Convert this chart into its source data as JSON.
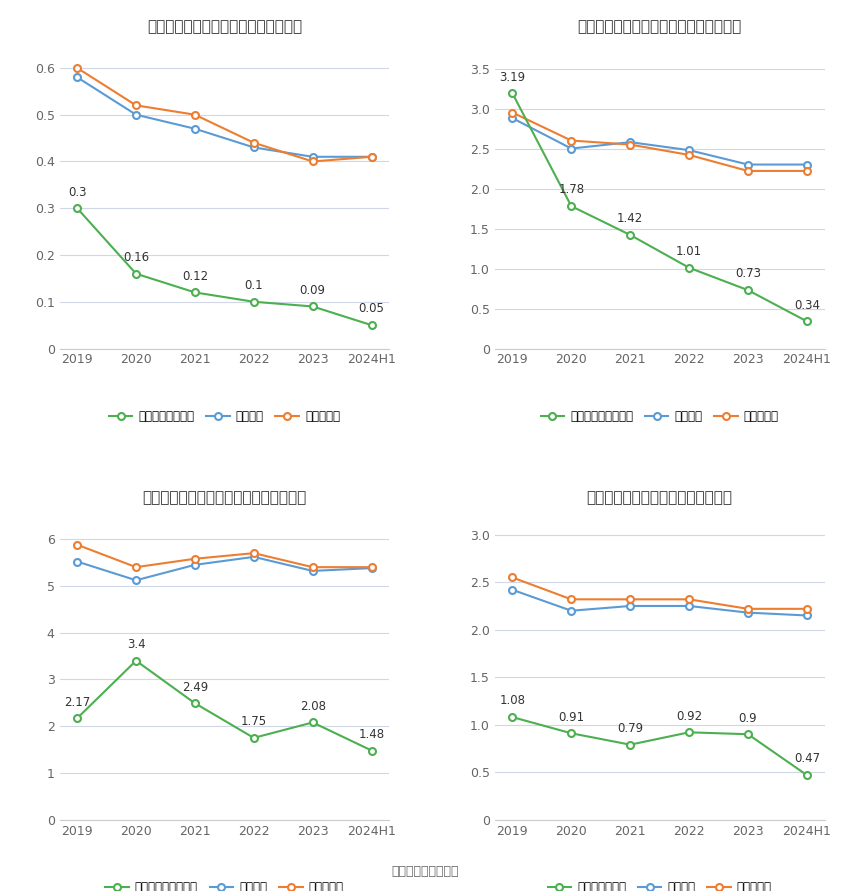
{
  "years": [
    "2019",
    "2020",
    "2021",
    "2022",
    "2023",
    "2024H1"
  ],
  "charts": [
    {
      "title": "德展健康历年总资产周转率情况（次）",
      "company_label": "公司总资产周转率",
      "company": [
        0.3,
        0.16,
        0.12,
        0.1,
        0.09,
        0.05
      ],
      "industry_mean": [
        0.58,
        0.5,
        0.47,
        0.43,
        0.41,
        0.41
      ],
      "industry_median": [
        0.6,
        0.52,
        0.5,
        0.44,
        0.4,
        0.41
      ],
      "ylim": [
        0,
        0.65
      ],
      "yticks": [
        0,
        0.1,
        0.2,
        0.3,
        0.4,
        0.5,
        0.6
      ]
    },
    {
      "title": "德展健康历年固定资产周转率情况（次）",
      "company_label": "公司固定资产周转率",
      "company": [
        3.19,
        1.78,
        1.42,
        1.01,
        0.73,
        0.34
      ],
      "industry_mean": [
        2.88,
        2.5,
        2.58,
        2.48,
        2.3,
        2.3
      ],
      "industry_median": [
        2.95,
        2.6,
        2.55,
        2.42,
        2.22,
        2.22
      ],
      "ylim": [
        0,
        3.8
      ],
      "yticks": [
        0,
        0.5,
        1.0,
        1.5,
        2.0,
        2.5,
        3.0,
        3.5
      ]
    },
    {
      "title": "德展健康历年应收账款周转率情况（次）",
      "company_label": "公司应收账款周转率",
      "company": [
        2.17,
        3.4,
        2.49,
        1.75,
        2.08,
        1.48
      ],
      "industry_mean": [
        5.52,
        5.12,
        5.45,
        5.62,
        5.32,
        5.38
      ],
      "industry_median": [
        5.88,
        5.4,
        5.58,
        5.7,
        5.4,
        5.4
      ],
      "ylim": [
        0,
        6.5
      ],
      "yticks": [
        0,
        1,
        2,
        3,
        4,
        5,
        6
      ]
    },
    {
      "title": "德展健康历年存货周转率情况（次）",
      "company_label": "公司存货周转率",
      "company": [
        1.08,
        0.91,
        0.79,
        0.92,
        0.9,
        0.47
      ],
      "industry_mean": [
        2.42,
        2.2,
        2.25,
        2.25,
        2.18,
        2.15
      ],
      "industry_median": [
        2.55,
        2.32,
        2.32,
        2.32,
        2.22,
        2.22
      ],
      "ylim": [
        0,
        3.2
      ],
      "yticks": [
        0,
        0.5,
        1.0,
        1.5,
        2.0,
        2.5,
        3.0
      ]
    }
  ],
  "color_company": "#4caf50",
  "color_mean": "#5b9bd5",
  "color_median": "#ed7d31",
  "bg_color": "#ffffff",
  "grid_color": "#d0d8e8",
  "source_text": "数据来源：恒生聚源"
}
